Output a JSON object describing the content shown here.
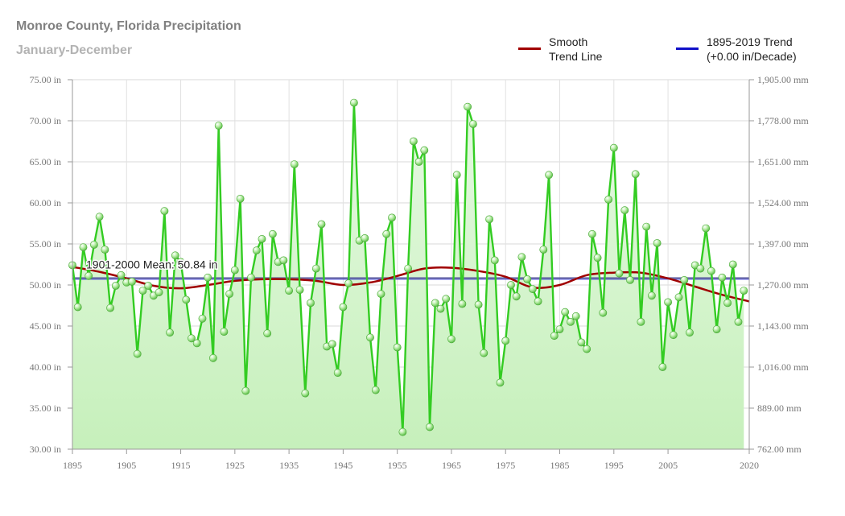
{
  "chart_data": {
    "type": "line",
    "title": "Monroe County, Florida Precipitation",
    "subtitle": "January-December",
    "legend": [
      {
        "name": "line-smooth",
        "label_lines": [
          "Smooth",
          "Trend Line"
        ],
        "color": "#a00000"
      },
      {
        "name": "line-trend",
        "label_lines": [
          "1895-2019 Trend",
          "(+0.00 in/Decade)"
        ],
        "color": "#1010c8"
      }
    ],
    "mean_label": "1901-2000 Mean: 50.84 in",
    "mean_value": 50.84,
    "ylim": [
      30,
      75
    ],
    "xlim": [
      1895,
      2020
    ],
    "y_ticks": [
      30,
      35,
      40,
      45,
      50,
      55,
      60,
      65,
      70,
      75
    ],
    "y_tick_labels": [
      "30.00 in",
      "35.00 in",
      "40.00 in",
      "45.00 in",
      "50.00 in",
      "55.00 in",
      "60.00 in",
      "65.00 in",
      "70.00 in",
      "75.00 in"
    ],
    "y2_tick_labels": [
      "762.00 mm",
      "889.00 mm",
      "1,016.00 mm",
      "1,143.00 mm",
      "1,270.00 mm",
      "1,397.00 mm",
      "1,524.00 mm",
      "1,651.00 mm",
      "1,778.00 mm",
      "1,905.00 mm"
    ],
    "x_ticks": [
      1895,
      1905,
      1915,
      1925,
      1935,
      1945,
      1955,
      1965,
      1975,
      1985,
      1995,
      2005,
      2020
    ],
    "x_tick_labels": [
      "1895",
      "1905",
      "1915",
      "1925",
      "1935",
      "1945",
      "1955",
      "1965",
      "1975",
      "1985",
      "1995",
      "2005",
      "2020"
    ],
    "series": [
      {
        "name": "",
        "color": "#33cc22",
        "x_start": 1895,
        "values": [
          52.4,
          47.3,
          54.6,
          51.1,
          54.9,
          58.3,
          54.3,
          47.2,
          49.9,
          51.2,
          50.3,
          50.4,
          41.6,
          49.3,
          49.9,
          48.7,
          49.1,
          59.0,
          44.2,
          53.6,
          52.8,
          48.2,
          43.5,
          42.9,
          45.9,
          50.9,
          41.1,
          69.4,
          44.3,
          48.9,
          51.8,
          60.5,
          37.1,
          50.9,
          54.2,
          55.6,
          44.1,
          56.2,
          52.8,
          53.0,
          49.3,
          64.7,
          49.4,
          36.8,
          47.8,
          52.0,
          57.4,
          42.5,
          42.8,
          39.3,
          47.3,
          50.2,
          72.2,
          55.4,
          55.7,
          43.6,
          37.2,
          48.9,
          56.2,
          58.2,
          42.4,
          32.1,
          52.0,
          67.5,
          65.0,
          66.4,
          32.7,
          47.8,
          47.1,
          48.3,
          43.4,
          63.4,
          47.7,
          71.7,
          69.6,
          47.6,
          41.7,
          58.0,
          53.0,
          38.1,
          43.2,
          50.0,
          48.6,
          53.4,
          50.7,
          49.5,
          48.0,
          54.3,
          63.4,
          43.8,
          44.6,
          46.7,
          45.5,
          46.2,
          43.0,
          42.2,
          56.2,
          53.3,
          46.6,
          60.4,
          66.7,
          51.4,
          59.1,
          50.6,
          63.5,
          45.5,
          57.1,
          48.7,
          55.1,
          40.0,
          47.9,
          43.9,
          48.5,
          50.6,
          44.2,
          52.4,
          52.0,
          56.9,
          51.7,
          44.6,
          50.9,
          47.8,
          52.5,
          45.5,
          49.3
        ]
      }
    ],
    "smooth_trend": {
      "x": [
        1895,
        1900,
        1905,
        1910,
        1915,
        1920,
        1925,
        1930,
        1935,
        1940,
        1945,
        1950,
        1955,
        1960,
        1965,
        1970,
        1975,
        1980,
        1985,
        1990,
        1995,
        2000,
        2005,
        2010,
        2015,
        2020
      ],
      "y": [
        52.2,
        51.6,
        50.8,
        49.9,
        49.6,
        50.0,
        50.5,
        50.7,
        50.7,
        50.5,
        50.0,
        50.3,
        51.1,
        52.0,
        52.1,
        51.7,
        51.0,
        49.7,
        50.0,
        51.2,
        51.5,
        51.5,
        50.8,
        49.8,
        48.8,
        48.0
      ]
    },
    "linear_trend": {
      "x": [
        1895,
        2020
      ],
      "y": [
        50.8,
        50.8
      ]
    }
  }
}
